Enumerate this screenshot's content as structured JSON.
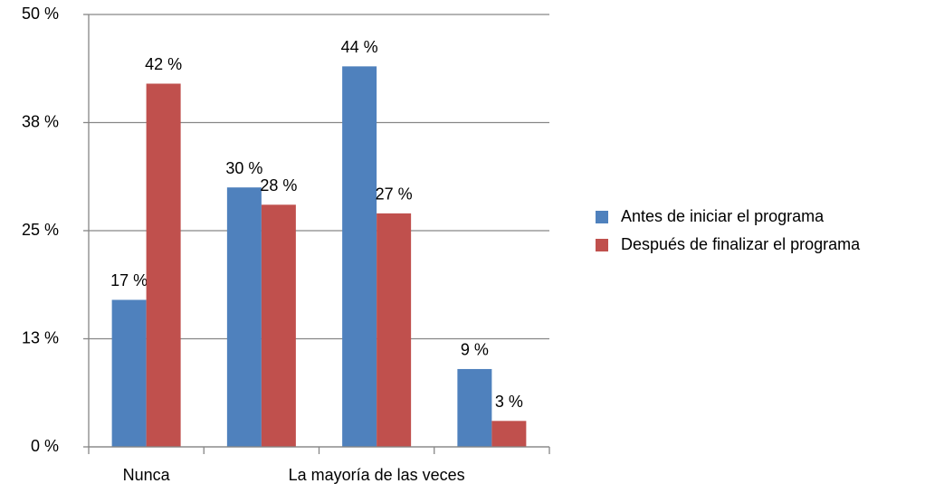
{
  "chart_data": {
    "type": "bar",
    "categories": [
      "Nunca",
      null,
      "La mayoría de las veces",
      null
    ],
    "series": [
      {
        "name": "Antes de iniciar el programa",
        "color": "#4f81bd",
        "values": [
          17,
          30,
          44,
          9
        ],
        "value_labels": [
          "17 %",
          "30 %",
          "44 %",
          "9 %"
        ]
      },
      {
        "name": "Después de finalizar el programa",
        "color": "#c0504d",
        "values": [
          42,
          28,
          27,
          3
        ],
        "value_labels": [
          "42 %",
          "28 %",
          "27 %",
          "3 %"
        ]
      }
    ],
    "ylim": [
      0,
      50
    ],
    "yticks": [
      {
        "value": 0,
        "label": "0 %"
      },
      {
        "value": 12.5,
        "label": "13 %"
      },
      {
        "value": 25,
        "label": "25 %"
      },
      {
        "value": 37.5,
        "label": "38 %"
      },
      {
        "value": 50,
        "label": "50 %"
      }
    ],
    "grid": true,
    "legend": "right"
  }
}
